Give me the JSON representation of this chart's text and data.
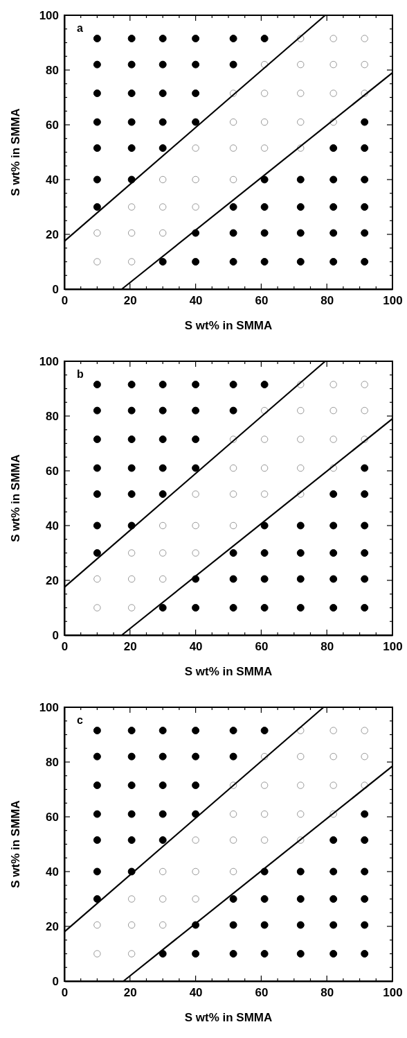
{
  "chart_data": [
    {
      "type": "scatter",
      "xlabel": "S wt% in SMMA",
      "ylabel": "S wt% in SMMA",
      "annotations": [
        "a"
      ],
      "xlim": [
        0,
        100
      ],
      "ylim": [
        0,
        100
      ],
      "xticks": [
        0,
        {
          "value": 5,
          "label": null
        },
        {
          "value": 10,
          "label": null
        },
        {
          "value": 15,
          "label": null
        },
        20,
        {
          "value": 25,
          "label": null
        },
        {
          "value": 30,
          "label": null
        },
        {
          "value": 35,
          "label": null
        },
        40,
        {
          "value": 45,
          "label": null
        },
        {
          "value": 50,
          "label": null
        },
        {
          "value": 55,
          "label": null
        },
        60,
        {
          "value": 65,
          "label": null
        },
        {
          "value": 70,
          "label": null
        },
        {
          "value": 75,
          "label": null
        },
        80,
        {
          "value": 85,
          "label": null
        },
        {
          "value": 90,
          "label": null
        },
        {
          "value": 95,
          "label": null
        },
        100
      ],
      "yticks": [
        0,
        {
          "value": 5,
          "label": null
        },
        {
          "value": 10,
          "label": null
        },
        {
          "value": 15,
          "label": null
        },
        20,
        {
          "value": 25,
          "label": null
        },
        {
          "value": 30,
          "label": null
        },
        {
          "value": 35,
          "label": null
        },
        40,
        {
          "value": 45,
          "label": null
        },
        {
          "value": 50,
          "label": null
        },
        {
          "value": 55,
          "label": null
        },
        60,
        {
          "value": 65,
          "label": null
        },
        {
          "value": 70,
          "label": null
        },
        {
          "value": 75,
          "label": null
        },
        80,
        {
          "value": 85,
          "label": null
        },
        {
          "value": 90,
          "label": null
        },
        {
          "value": 95,
          "label": null
        },
        100
      ],
      "series": [
        {
          "marker": "circle",
          "color": "#000000",
          "x": [
            10,
            20.5,
            30,
            40,
            51.5,
            61,
            10,
            20.5,
            30,
            40,
            51.5,
            10,
            20.5,
            30,
            40,
            10,
            20.5,
            30,
            40,
            91.5,
            10,
            20.5,
            30,
            82,
            91.5,
            10,
            20.5,
            61,
            72,
            82,
            91.5,
            10,
            51.5,
            61,
            72,
            82,
            91.5,
            40,
            51.5,
            61,
            72,
            82,
            91.5,
            30,
            40,
            51.5,
            61,
            72,
            82,
            91.5
          ],
          "values": [
            91.5,
            91.5,
            91.5,
            91.5,
            91.5,
            91.5,
            82,
            82,
            82,
            82,
            82,
            71.5,
            71.5,
            71.5,
            71.5,
            61,
            61,
            61,
            61,
            61,
            51.5,
            51.5,
            51.5,
            51.5,
            51.5,
            40,
            40,
            40,
            40,
            40,
            40,
            30,
            30,
            30,
            30,
            30,
            30,
            20.5,
            20.5,
            20.5,
            20.5,
            20.5,
            20.5,
            10,
            10,
            10,
            10,
            10,
            10,
            10
          ]
        },
        {
          "marker": "circle",
          "color": "#999999",
          "x": [
            72,
            82,
            91.5,
            61,
            72,
            82,
            91.5,
            51.5,
            61,
            72,
            82,
            91.5,
            51.5,
            61,
            72,
            82,
            40,
            51.5,
            61,
            72,
            30,
            40,
            51.5,
            20.5,
            30,
            40,
            10,
            20.5,
            30,
            10,
            20.5
          ],
          "values": [
            91.5,
            91.5,
            91.5,
            82,
            82,
            82,
            82,
            71.5,
            71.5,
            71.5,
            71.5,
            71.5,
            61,
            61,
            61,
            61,
            51.5,
            51.5,
            51.5,
            51.5,
            40,
            40,
            40,
            30,
            30,
            30,
            20.5,
            20.5,
            20.5,
            10,
            10
          ]
        },
        {
          "type": "line",
          "marker": "none",
          "color": "#000000",
          "x": [
            0,
            79.5
          ],
          "values": [
            17.5,
            100
          ]
        },
        {
          "type": "line",
          "marker": "none",
          "color": "#000000",
          "x": [
            17.5,
            100
          ],
          "values": [
            0,
            79
          ]
        }
      ]
    },
    {
      "type": "scatter",
      "xlabel": "S wt% in SMMA",
      "ylabel": "S wt% in SMMA",
      "annotations": [
        "b"
      ],
      "xlim": [
        0,
        100
      ],
      "ylim": [
        0,
        100
      ],
      "xticks": [
        0,
        {
          "value": 5,
          "label": null
        },
        {
          "value": 10,
          "label": null
        },
        {
          "value": 15,
          "label": null
        },
        20,
        {
          "value": 25,
          "label": null
        },
        {
          "value": 30,
          "label": null
        },
        {
          "value": 35,
          "label": null
        },
        40,
        {
          "value": 45,
          "label": null
        },
        {
          "value": 50,
          "label": null
        },
        {
          "value": 55,
          "label": null
        },
        60,
        {
          "value": 65,
          "label": null
        },
        {
          "value": 70,
          "label": null
        },
        {
          "value": 75,
          "label": null
        },
        80,
        {
          "value": 85,
          "label": null
        },
        {
          "value": 90,
          "label": null
        },
        {
          "value": 95,
          "label": null
        },
        100
      ],
      "yticks": [
        0,
        {
          "value": 5,
          "label": null
        },
        {
          "value": 10,
          "label": null
        },
        {
          "value": 15,
          "label": null
        },
        20,
        {
          "value": 25,
          "label": null
        },
        {
          "value": 30,
          "label": null
        },
        {
          "value": 35,
          "label": null
        },
        40,
        {
          "value": 45,
          "label": null
        },
        {
          "value": 50,
          "label": null
        },
        {
          "value": 55,
          "label": null
        },
        60,
        {
          "value": 65,
          "label": null
        },
        {
          "value": 70,
          "label": null
        },
        {
          "value": 75,
          "label": null
        },
        80,
        {
          "value": 85,
          "label": null
        },
        {
          "value": 90,
          "label": null
        },
        {
          "value": 95,
          "label": null
        },
        100
      ],
      "series": [
        {
          "marker": "circle",
          "color": "#000000",
          "x": [
            10,
            20.5,
            30,
            40,
            51.5,
            61,
            10,
            20.5,
            30,
            40,
            51.5,
            10,
            20.5,
            30,
            40,
            10,
            20.5,
            30,
            40,
            91.5,
            10,
            20.5,
            30,
            82,
            91.5,
            10,
            20.5,
            61,
            72,
            82,
            91.5,
            10,
            51.5,
            61,
            72,
            82,
            91.5,
            40,
            51.5,
            61,
            72,
            82,
            91.5,
            30,
            40,
            51.5,
            61,
            72,
            82,
            91.5
          ],
          "values": [
            91.5,
            91.5,
            91.5,
            91.5,
            91.5,
            91.5,
            82,
            82,
            82,
            82,
            82,
            71.5,
            71.5,
            71.5,
            71.5,
            61,
            61,
            61,
            61,
            61,
            51.5,
            51.5,
            51.5,
            51.5,
            51.5,
            40,
            40,
            40,
            40,
            40,
            40,
            30,
            30,
            30,
            30,
            30,
            30,
            20.5,
            20.5,
            20.5,
            20.5,
            20.5,
            20.5,
            10,
            10,
            10,
            10,
            10,
            10,
            10
          ]
        },
        {
          "marker": "circle",
          "color": "#999999",
          "x": [
            72,
            82,
            91.5,
            61,
            72,
            82,
            91.5,
            51.5,
            61,
            72,
            82,
            91.5,
            51.5,
            61,
            72,
            82,
            40,
            51.5,
            61,
            72,
            30,
            40,
            51.5,
            20.5,
            30,
            40,
            10,
            20.5,
            30,
            10,
            20.5
          ],
          "values": [
            91.5,
            91.5,
            91.5,
            82,
            82,
            82,
            82,
            71.5,
            71.5,
            71.5,
            71.5,
            71.5,
            61,
            61,
            61,
            61,
            51.5,
            51.5,
            51.5,
            51.5,
            40,
            40,
            40,
            30,
            30,
            30,
            20.5,
            20.5,
            20.5,
            10,
            10
          ]
        },
        {
          "type": "line",
          "marker": "none",
          "color": "#000000",
          "x": [
            0,
            79.5
          ],
          "values": [
            17.5,
            100
          ]
        },
        {
          "type": "line",
          "marker": "none",
          "color": "#000000",
          "x": [
            17.5,
            100
          ],
          "values": [
            0,
            79
          ]
        }
      ]
    },
    {
      "type": "scatter",
      "xlabel": "S wt% in SMMA",
      "ylabel": "S wt% in SMMA",
      "annotations": [
        "c"
      ],
      "xlim": [
        0,
        100
      ],
      "ylim": [
        0,
        100
      ],
      "xticks": [
        0,
        {
          "value": 5,
          "label": null
        },
        {
          "value": 10,
          "label": null
        },
        {
          "value": 15,
          "label": null
        },
        20,
        {
          "value": 25,
          "label": null
        },
        {
          "value": 30,
          "label": null
        },
        {
          "value": 35,
          "label": null
        },
        40,
        {
          "value": 45,
          "label": null
        },
        {
          "value": 50,
          "label": null
        },
        {
          "value": 55,
          "label": null
        },
        60,
        {
          "value": 65,
          "label": null
        },
        {
          "value": 70,
          "label": null
        },
        {
          "value": 75,
          "label": null
        },
        80,
        {
          "value": 85,
          "label": null
        },
        {
          "value": 90,
          "label": null
        },
        {
          "value": 95,
          "label": null
        },
        100
      ],
      "yticks": [
        0,
        {
          "value": 5,
          "label": null
        },
        {
          "value": 10,
          "label": null
        },
        {
          "value": 15,
          "label": null
        },
        20,
        {
          "value": 25,
          "label": null
        },
        {
          "value": 30,
          "label": null
        },
        {
          "value": 35,
          "label": null
        },
        40,
        {
          "value": 45,
          "label": null
        },
        {
          "value": 50,
          "label": null
        },
        {
          "value": 55,
          "label": null
        },
        60,
        {
          "value": 65,
          "label": null
        },
        {
          "value": 70,
          "label": null
        },
        {
          "value": 75,
          "label": null
        },
        80,
        {
          "value": 85,
          "label": null
        },
        {
          "value": 90,
          "label": null
        },
        {
          "value": 95,
          "label": null
        },
        100
      ],
      "series": [
        {
          "marker": "circle",
          "color": "#000000",
          "x": [
            10,
            20.5,
            30,
            40,
            51.5,
            61,
            10,
            20.5,
            30,
            40,
            51.5,
            10,
            20.5,
            30,
            40,
            10,
            20.5,
            30,
            40,
            91.5,
            10,
            20.5,
            30,
            82,
            91.5,
            10,
            20.5,
            61,
            72,
            82,
            91.5,
            10,
            51.5,
            61,
            72,
            82,
            91.5,
            40,
            51.5,
            61,
            72,
            82,
            91.5,
            30,
            40,
            51.5,
            61,
            72,
            82,
            91.5
          ],
          "values": [
            91.5,
            91.5,
            91.5,
            91.5,
            91.5,
            91.5,
            82,
            82,
            82,
            82,
            82,
            71.5,
            71.5,
            71.5,
            71.5,
            61,
            61,
            61,
            61,
            61,
            51.5,
            51.5,
            51.5,
            51.5,
            51.5,
            40,
            40,
            40,
            40,
            40,
            40,
            30,
            30,
            30,
            30,
            30,
            30,
            20.5,
            20.5,
            20.5,
            20.5,
            20.5,
            20.5,
            10,
            10,
            10,
            10,
            10,
            10,
            10
          ]
        },
        {
          "marker": "circle",
          "color": "#999999",
          "x": [
            72,
            82,
            91.5,
            61,
            72,
            82,
            91.5,
            51.5,
            61,
            72,
            82,
            91.5,
            51.5,
            61,
            72,
            82,
            40,
            51.5,
            61,
            72,
            30,
            40,
            51.5,
            20.5,
            30,
            40,
            10,
            20.5,
            30,
            10,
            20.5
          ],
          "values": [
            91.5,
            91.5,
            91.5,
            82,
            82,
            82,
            82,
            71.5,
            71.5,
            71.5,
            71.5,
            71.5,
            61,
            61,
            61,
            61,
            51.5,
            51.5,
            51.5,
            51.5,
            40,
            40,
            40,
            30,
            30,
            30,
            20.5,
            20.5,
            20.5,
            10,
            10
          ]
        },
        {
          "type": "line",
          "marker": "none",
          "color": "#000000",
          "x": [
            0,
            79
          ],
          "values": [
            18,
            100
          ]
        },
        {
          "type": "line",
          "marker": "none",
          "color": "#000000",
          "x": [
            18,
            100
          ],
          "values": [
            0,
            78.5
          ]
        }
      ]
    }
  ]
}
